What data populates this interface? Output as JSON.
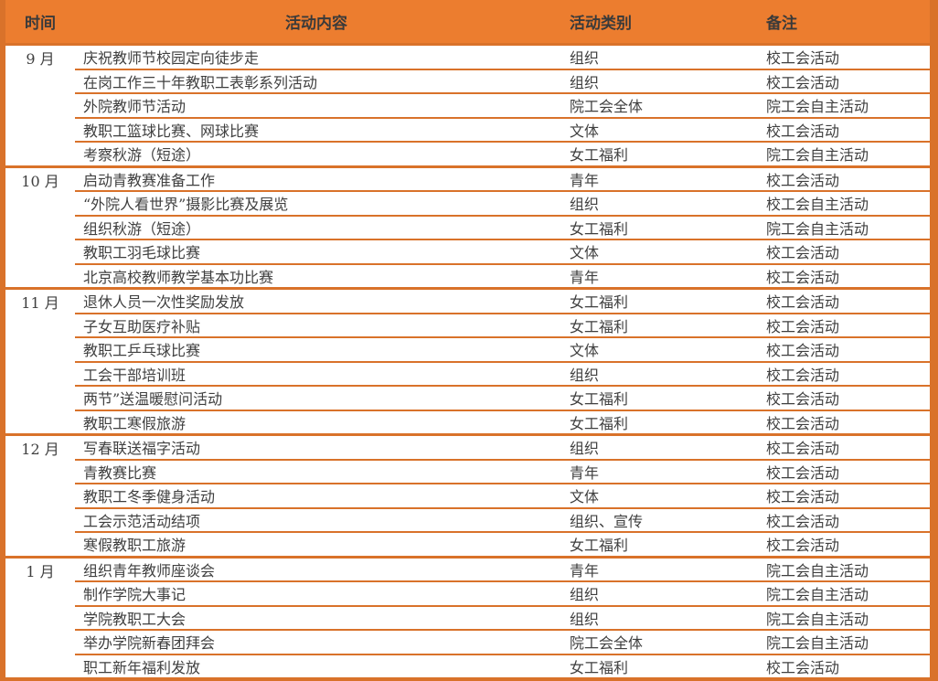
{
  "colors": {
    "header_bg": "#EC7D2F",
    "line": "#D9722A",
    "body_text": "#3F3F3F",
    "header_text": "#3A3A3A"
  },
  "table": {
    "headers": {
      "time": "时间",
      "content": "活动内容",
      "category": "活动类别",
      "remark": "备注"
    },
    "groups": [
      {
        "month": "9 月",
        "rows": [
          {
            "content": "庆祝教师节校园定向徒步走",
            "category": "组织",
            "remark": "校工会活动"
          },
          {
            "content": "在岗工作三十年教职工表彰系列活动",
            "category": "组织",
            "remark": "校工会活动"
          },
          {
            "content": "外院教师节活动",
            "category": "院工会全体",
            "remark": "院工会自主活动"
          },
          {
            "content": "教职工篮球比赛、网球比赛",
            "category": "文体",
            "remark": "校工会活动"
          },
          {
            "content": "考察秋游（短途）",
            "category": "女工福利",
            "remark": "院工会自主活动"
          }
        ]
      },
      {
        "month": "10 月",
        "rows": [
          {
            "content": "启动青教赛准备工作",
            "category": "青年",
            "remark": "校工会活动"
          },
          {
            "content": "“外院人看世界”摄影比赛及展览",
            "category": "组织",
            "remark": "校工会自主活动"
          },
          {
            "content": "组织秋游（短途）",
            "category": "女工福利",
            "remark": "院工会自主活动"
          },
          {
            "content": "教职工羽毛球比赛",
            "category": "文体",
            "remark": "校工会活动"
          },
          {
            "content": "北京高校教师教学基本功比赛",
            "category": "青年",
            "remark": "校工会活动"
          }
        ]
      },
      {
        "month": "11 月",
        "rows": [
          {
            "content": "退休人员一次性奖励发放",
            "category": "女工福利",
            "remark": "校工会活动"
          },
          {
            "content": "子女互助医疗补贴",
            "category": "女工福利",
            "remark": "校工会活动"
          },
          {
            "content": "教职工乒乓球比赛",
            "category": "文体",
            "remark": "校工会活动"
          },
          {
            "content": "工会干部培训班",
            "category": "组织",
            "remark": "校工会活动"
          },
          {
            "content": "两节”送温暖慰问活动",
            "category": "女工福利",
            "remark": "校工会活动"
          },
          {
            "content": "教职工寒假旅游",
            "category": "女工福利",
            "remark": "校工会活动"
          }
        ]
      },
      {
        "month": "12 月",
        "rows": [
          {
            "content": "写春联送福字活动",
            "category": "组织",
            "remark": "校工会活动"
          },
          {
            "content": "青教赛比赛",
            "category": "青年",
            "remark": "校工会活动"
          },
          {
            "content": "教职工冬季健身活动",
            "category": "文体",
            "remark": "校工会活动"
          },
          {
            "content": "工会示范活动结项",
            "category": "组织、宣传",
            "remark": "校工会活动"
          },
          {
            "content": "寒假教职工旅游",
            "category": "女工福利",
            "remark": "校工会活动"
          }
        ]
      },
      {
        "month": "1 月",
        "rows": [
          {
            "content": "组织青年教师座谈会",
            "category": "青年",
            "remark": "院工会自主活动"
          },
          {
            "content": "制作学院大事记",
            "category": "组织",
            "remark": "院工会自主活动"
          },
          {
            "content": "学院教职工大会",
            "category": "组织",
            "remark": "院工会自主活动"
          },
          {
            "content": "举办学院新春团拜会",
            "category": "院工会全体",
            "remark": "院工会自主活动"
          },
          {
            "content": "职工新年福利发放",
            "category": "女工福利",
            "remark": "校工会活动"
          }
        ]
      }
    ]
  }
}
